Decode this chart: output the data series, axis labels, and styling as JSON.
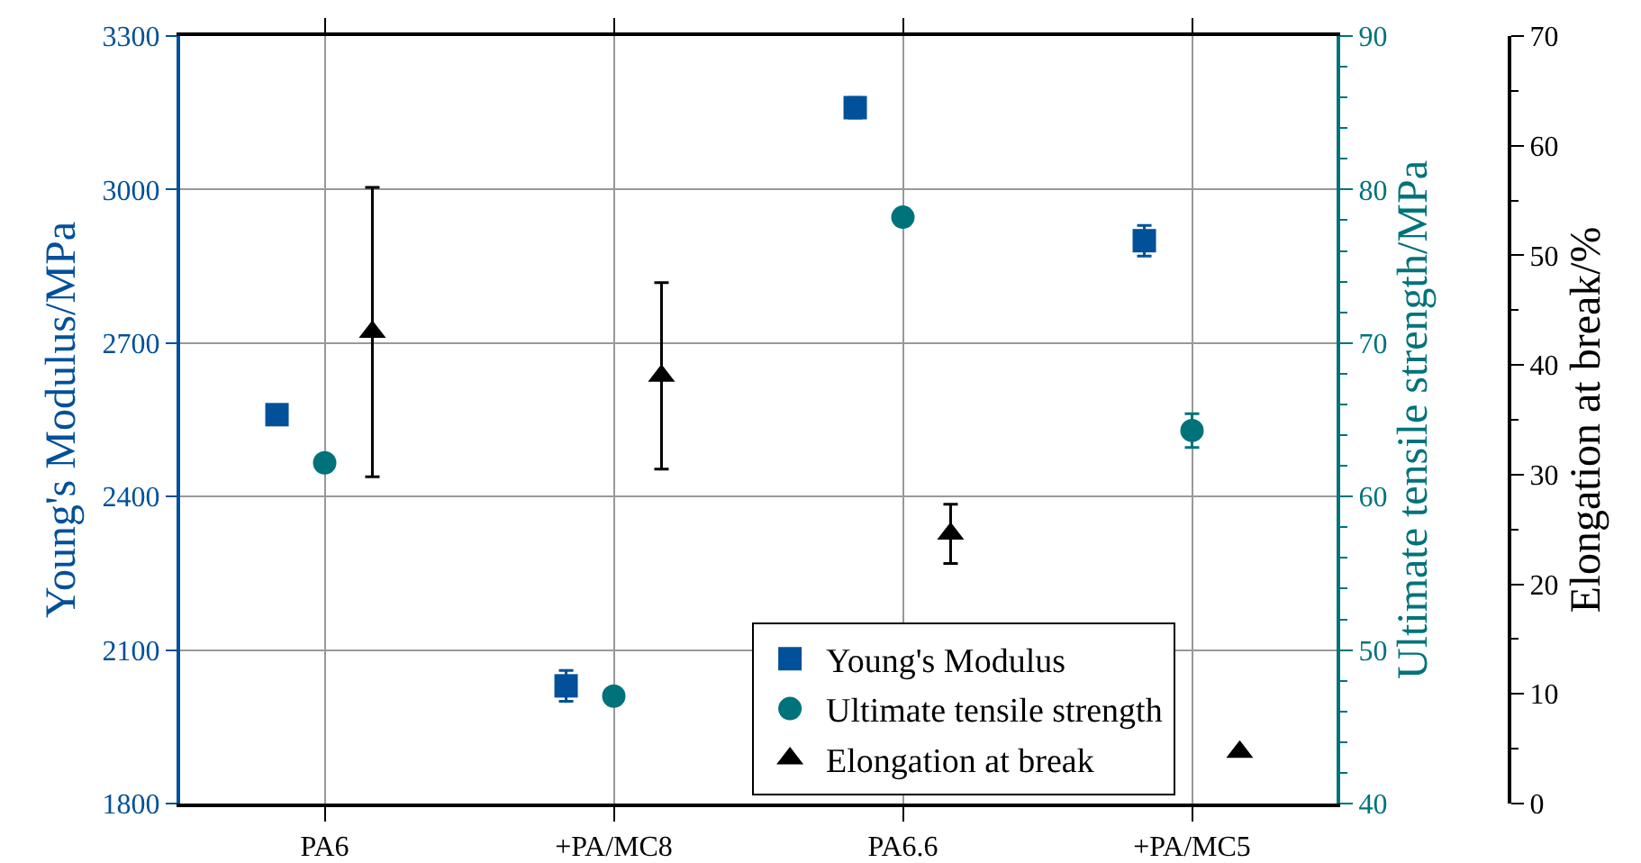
{
  "chart_data": {
    "type": "scatter",
    "categories": [
      "PA6",
      "+PA/MC8",
      "PA6.6",
      "+PA/MC5"
    ],
    "ylabel": "Young's Modulus/MPa",
    "y2label": "Ultimate tensile strength/MPa",
    "y3label": "Elongation at break/%",
    "series": [
      {
        "name": "Young's Modulus",
        "color": "#00509a",
        "marker": "square",
        "axis": "y",
        "values": [
          2560,
          2030,
          3160,
          2900
        ],
        "errors": [
          null,
          30,
          20,
          30
        ]
      },
      {
        "name": "Ultimate tensile strength",
        "color": "#00737a",
        "marker": "circle",
        "axis": "y2",
        "values": [
          62.2,
          47.0,
          78.2,
          64.3
        ],
        "errors": [
          null,
          null,
          null,
          1.1
        ]
      },
      {
        "name": "Elongation at break",
        "color": "#000000",
        "marker": "triangle",
        "axis": "y3",
        "values": [
          43,
          39,
          24.6,
          4.7
        ],
        "errors": [
          13.2,
          8.5,
          2.7,
          null
        ]
      }
    ],
    "ylim": [
      1800,
      3300
    ],
    "yticks": [
      1800,
      2100,
      2400,
      2700,
      3000,
      3300
    ],
    "y2lim": [
      40,
      90
    ],
    "y2ticks": [
      40,
      50,
      60,
      70,
      80,
      90
    ],
    "y3lim": [
      0,
      70
    ],
    "y3ticks": [
      0,
      10,
      20,
      30,
      40,
      50,
      60,
      70
    ],
    "grid": true,
    "legend": "bottom"
  }
}
